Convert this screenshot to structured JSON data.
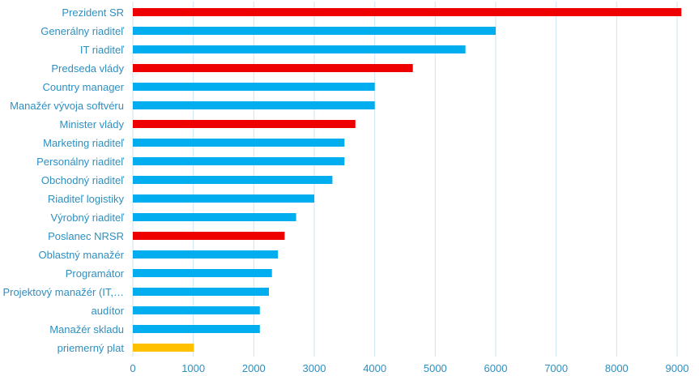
{
  "chart_data": {
    "type": "bar",
    "orientation": "horizontal",
    "title": "",
    "xlabel": "",
    "ylabel": "",
    "xlim": [
      0,
      9000
    ],
    "x_ticks": [
      "0",
      "1000",
      "2000",
      "3000",
      "4000",
      "5000",
      "6000",
      "7000",
      "8000",
      "9000"
    ],
    "grid": true,
    "categories": [
      "Prezident SR",
      "Generálny riaditeľ",
      "IT riaditeľ",
      "Predseda vlády",
      "Country manager",
      "Manažér vývoja softvéru",
      "Minister vlády",
      "Marketing riaditeľ",
      "Personálny riaditeľ",
      "Obchodný riaditeľ",
      "Riaditeľ logistiky",
      "Výrobný riaditeľ",
      "Poslanec NRSR",
      "Oblastný manažér",
      "Programátor",
      "Projektový manažér (IT,…",
      "audítor",
      "Manažér skladu",
      "priemerný plat"
    ],
    "values": [
      9070,
      6000,
      5500,
      4630,
      4000,
      4000,
      3680,
      3500,
      3500,
      3300,
      3000,
      2700,
      2510,
      2400,
      2300,
      2250,
      2100,
      2100,
      1010
    ],
    "colors": [
      "#ee0000",
      "#00aeef",
      "#00aeef",
      "#ee0000",
      "#00aeef",
      "#00aeef",
      "#ee0000",
      "#00aeef",
      "#00aeef",
      "#00aeef",
      "#00aeef",
      "#00aeef",
      "#ee0000",
      "#00aeef",
      "#00aeef",
      "#00aeef",
      "#00aeef",
      "#00aeef",
      "#ffc000"
    ],
    "label_color": "#2e8fc1",
    "grid_color": "#cfe6f2"
  }
}
